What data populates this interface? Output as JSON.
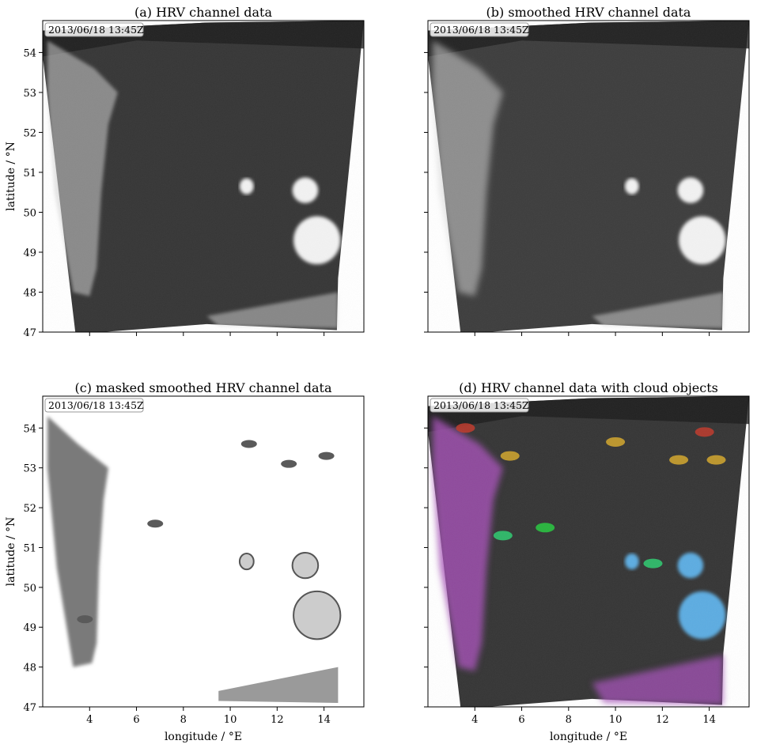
{
  "chart_data": [
    {
      "type": "heatmap",
      "title": "(a) HRV channel data",
      "timestamp": "2013/06/18 13:45Z",
      "xlabel": "",
      "ylabel": "latitude / °N",
      "xlim": [
        2.0,
        15.7
      ],
      "ylim": [
        47.0,
        54.8
      ],
      "xticks": [
        4,
        6,
        8,
        10,
        12,
        14
      ],
      "yticks": [
        47,
        48,
        49,
        50,
        51,
        52,
        53,
        54
      ],
      "style": "raw"
    },
    {
      "type": "heatmap",
      "title": "(b) smoothed HRV channel data",
      "timestamp": "2013/06/18 13:45Z",
      "xlabel": "",
      "ylabel": "",
      "xlim": [
        2.0,
        15.7
      ],
      "ylim": [
        47.0,
        54.8
      ],
      "xticks": [
        4,
        6,
        8,
        10,
        12,
        14
      ],
      "yticks": [
        47,
        48,
        49,
        50,
        51,
        52,
        53,
        54
      ],
      "style": "smooth"
    },
    {
      "type": "heatmap",
      "title": "(c) masked smoothed HRV channel data",
      "timestamp": "2013/06/18 13:45Z",
      "xlabel": "longitude / °E",
      "ylabel": "latitude / °N",
      "xlim": [
        2.0,
        15.7
      ],
      "ylim": [
        47.0,
        54.8
      ],
      "xticks": [
        4,
        6,
        8,
        10,
        12,
        14
      ],
      "yticks": [
        47,
        48,
        49,
        50,
        51,
        52,
        53,
        54
      ],
      "style": "masked"
    },
    {
      "type": "heatmap",
      "title": "(d) HRV channel data with cloud objects",
      "timestamp": "2013/06/18 13:45Z",
      "xlabel": "longitude / °E",
      "ylabel": "",
      "xlim": [
        2.0,
        15.7
      ],
      "ylim": [
        47.0,
        54.8
      ],
      "xticks": [
        4,
        6,
        8,
        10,
        12,
        14
      ],
      "yticks": [
        47,
        48,
        49,
        50,
        51,
        52,
        53,
        54
      ],
      "style": "objects",
      "object_colors": [
        "#a653b8",
        "#e08fa0",
        "#c0392b",
        "#d4a72c",
        "#27c93f",
        "#2ecc71",
        "#5dade2"
      ]
    }
  ],
  "colors": {
    "background": "#ffffff",
    "scene_dark": "#3a3a3a",
    "cloud_light": "#e8e8e8",
    "mask_white": "#ffffff"
  }
}
